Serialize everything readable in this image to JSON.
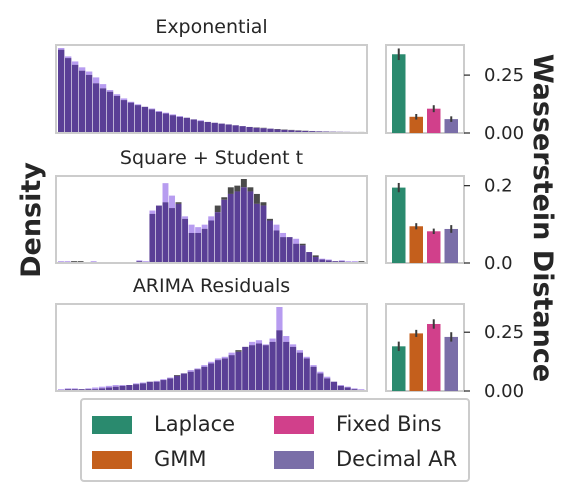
{
  "figure": {
    "left_ylabel": "Density",
    "right_ylabel": "Wasserstein Distance"
  },
  "colors": {
    "hist_real": "#4a4a4a",
    "hist_model": "#b79cf0",
    "hist_overlap": "#5a3f96",
    "Laplace": "#2a8a6e",
    "GMM": "#c45f1c",
    "Fixed Bins": "#d1408b",
    "Decimal AR": "#7a6ea8"
  },
  "legend": [
    {
      "label": "Laplace",
      "color": "#2a8a6e"
    },
    {
      "label": "Fixed Bins",
      "color": "#d1408b"
    },
    {
      "label": "GMM",
      "color": "#c45f1c"
    },
    {
      "label": "Decimal AR",
      "color": "#7a6ea8"
    }
  ],
  "chart_data": [
    {
      "type": "bar",
      "role": "histogram",
      "title": "Exponential",
      "series": [
        {
          "values": [
            0.98,
            0.88,
            0.8,
            0.73,
            0.68,
            0.58,
            0.52,
            0.48,
            0.43,
            0.38,
            0.35,
            0.32,
            0.3,
            0.27,
            0.24,
            0.22,
            0.2,
            0.18,
            0.17,
            0.15,
            0.13,
            0.12,
            0.11,
            0.1,
            0.09,
            0.08,
            0.07,
            0.06,
            0.055,
            0.05,
            0.04,
            0.035,
            0.03,
            0.025,
            0.02,
            0.015,
            0.012,
            0.008,
            0.006,
            0.004,
            0.003,
            0.002,
            0.001,
            0.001
          ]
        },
        {
          "values": [
            1.0,
            0.9,
            0.84,
            0.77,
            0.72,
            0.65,
            0.57,
            0.5,
            0.45,
            0.4,
            0.36,
            0.33,
            0.3,
            0.28,
            0.25,
            0.23,
            0.21,
            0.19,
            0.17,
            0.15,
            0.14,
            0.12,
            0.11,
            0.1,
            0.09,
            0.08,
            0.07,
            0.06,
            0.05,
            0.045,
            0.04,
            0.03,
            0.025,
            0.02,
            0.015,
            0.012,
            0.01,
            0.008,
            0.006,
            0.004,
            0.003,
            0.002,
            0.001,
            0.0
          ]
        }
      ]
    },
    {
      "type": "bar",
      "role": "histogram",
      "title": "Square + Student t",
      "series": [
        {
          "values": [
            0,
            0,
            0.01,
            0.01,
            0,
            0,
            0,
            0,
            0,
            0,
            0,
            0,
            0.01,
            0,
            0.58,
            0.68,
            0.72,
            0.65,
            0.72,
            0.52,
            0.35,
            0.35,
            0.4,
            0.5,
            0.68,
            0.78,
            0.9,
            0.92,
            1.0,
            0.9,
            0.82,
            0.72,
            0.52,
            0.38,
            0.3,
            0.3,
            0.22,
            0.22,
            0.12,
            0.08,
            0.03,
            0.02,
            0.01,
            0.01,
            0,
            0,
            0.01
          ]
        },
        {
          "values": [
            0.01,
            0.01,
            0.0,
            0.0,
            0.0,
            0.01,
            0.0,
            0.0,
            0.0,
            0.0,
            0.0,
            0.0,
            0.02,
            0.01,
            0.62,
            0.68,
            0.95,
            0.8,
            0.7,
            0.55,
            0.45,
            0.42,
            0.45,
            0.55,
            0.6,
            0.75,
            0.82,
            0.85,
            0.9,
            0.85,
            0.7,
            0.68,
            0.5,
            0.45,
            0.35,
            0.3,
            0.28,
            0.2,
            0.12,
            0.06,
            0.04,
            0.03,
            0.01,
            0.02,
            0.01,
            0.01,
            0.0
          ]
        }
      ]
    },
    {
      "type": "bar",
      "role": "histogram",
      "title": "ARIMA Residuals",
      "series": [
        {
          "values": [
            0.0,
            0.01,
            0.01,
            0.01,
            0.01,
            0.01,
            0.02,
            0.03,
            0.04,
            0.05,
            0.06,
            0.07,
            0.08,
            0.1,
            0.1,
            0.12,
            0.14,
            0.18,
            0.2,
            0.22,
            0.25,
            0.28,
            0.32,
            0.36,
            0.38,
            0.42,
            0.48,
            0.52,
            0.54,
            0.56,
            0.54,
            0.58,
            0.72,
            0.58,
            0.52,
            0.45,
            0.38,
            0.28,
            0.2,
            0.14,
            0.1,
            0.05,
            0.03,
            0.01,
            0.0
          ]
        },
        {
          "values": [
            0.01,
            0.02,
            0.02,
            0.01,
            0.02,
            0.03,
            0.04,
            0.05,
            0.06,
            0.06,
            0.06,
            0.08,
            0.09,
            0.1,
            0.11,
            0.13,
            0.15,
            0.17,
            0.2,
            0.24,
            0.26,
            0.3,
            0.34,
            0.38,
            0.4,
            0.45,
            0.46,
            0.52,
            0.58,
            0.6,
            0.55,
            0.62,
            1.0,
            0.65,
            0.55,
            0.48,
            0.4,
            0.3,
            0.22,
            0.16,
            0.1,
            0.06,
            0.04,
            0.02,
            0.01
          ]
        }
      ]
    },
    {
      "type": "bar",
      "role": "wasserstein",
      "categories": [
        "Laplace",
        "GMM",
        "Fixed Bins",
        "Decimal AR"
      ],
      "values": [
        0.34,
        0.07,
        0.105,
        0.06
      ],
      "errors": [
        0.025,
        0.012,
        0.015,
        0.012
      ],
      "ylim": [
        0,
        0.38
      ],
      "yticks": [
        0.0,
        0.25
      ],
      "ytick_labels": [
        "0.00",
        "0.25"
      ]
    },
    {
      "type": "bar",
      "role": "wasserstein",
      "categories": [
        "Laplace",
        "GMM",
        "Fixed Bins",
        "Decimal AR"
      ],
      "values": [
        0.195,
        0.095,
        0.082,
        0.088
      ],
      "errors": [
        0.012,
        0.008,
        0.007,
        0.01
      ],
      "ylim": [
        0,
        0.225
      ],
      "yticks": [
        0.0,
        0.2
      ],
      "ytick_labels": [
        "0.0",
        "0.2"
      ]
    },
    {
      "type": "bar",
      "role": "wasserstein",
      "categories": [
        "Laplace",
        "GMM",
        "Fixed Bins",
        "Decimal AR"
      ],
      "values": [
        0.19,
        0.245,
        0.285,
        0.23
      ],
      "errors": [
        0.02,
        0.015,
        0.02,
        0.02
      ],
      "ylim": [
        0,
        0.37
      ],
      "yticks": [
        0.0,
        0.25
      ],
      "ytick_labels": [
        "0.00",
        "0.25"
      ]
    }
  ]
}
